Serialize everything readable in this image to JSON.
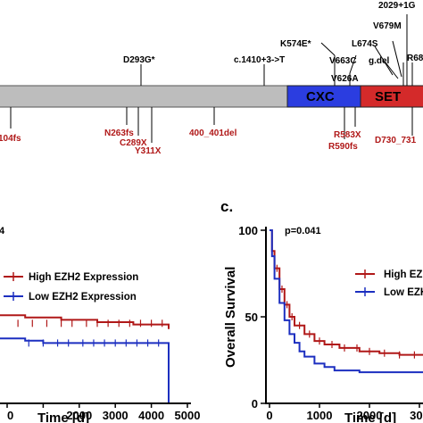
{
  "domains": [
    {
      "label": "CXC",
      "color": "#2b3de0"
    },
    {
      "label": "SET",
      "color": "#d42a2a"
    }
  ],
  "mutations_above": [
    "2029+1G",
    "V679M",
    "R68",
    "L674S",
    "K574E*",
    "V663C",
    "g.del",
    "D293G*",
    "c.1410+3->T",
    "V626A"
  ],
  "mutations_below": [
    "104fs",
    "N263fs",
    "C289X",
    "Y311X",
    "400_401del",
    "R583X",
    "R590fs",
    "D730_731"
  ],
  "panel_b": {
    "pvalue": "4",
    "legend": [
      "High  EZH2  Expression",
      "Low  EZH2  Expression"
    ],
    "xlabel": "Time [d]",
    "xticks": [
      "0",
      "2000",
      "3000",
      "4000",
      "5000"
    ]
  },
  "panel_c": {
    "letter": "c.",
    "pvalue": "p=0.041",
    "ylabel": "Overall Survival",
    "yticks": [
      "100",
      "50",
      "0"
    ],
    "legend": [
      "High  EZH",
      "Low  EZH"
    ],
    "xlabel": "Time [d]",
    "xticks": [
      "0",
      "1000",
      "2000",
      "300"
    ]
  },
  "colors": {
    "high": "#b01818",
    "low": "#1c2fc0"
  },
  "chart_data": [
    {
      "type": "line",
      "title": "",
      "xlabel": "Time [d]",
      "ylabel": "",
      "xlim": [
        -300,
        5000
      ],
      "series": [
        {
          "name": "High  EZH2  Expression",
          "x": [
            -300,
            500,
            1500,
            2500,
            3500,
            4480,
            4480
          ],
          "y": [
            38,
            37,
            36,
            35,
            34,
            34,
            32
          ]
        },
        {
          "name": "Low  EZH2  Expression",
          "x": [
            -300,
            500,
            1000,
            2000,
            3000,
            4480,
            4480
          ],
          "y": [
            28,
            27,
            26,
            26,
            26,
            26,
            0
          ]
        }
      ]
    },
    {
      "type": "line",
      "title": "",
      "xlabel": "Time [d]",
      "ylabel": "Overall Survival",
      "xlim": [
        0,
        3200
      ],
      "ylim": [
        0,
        100
      ],
      "series": [
        {
          "name": "High  EZH",
          "x": [
            0,
            50,
            100,
            200,
            300,
            400,
            500,
            700,
            900,
            1100,
            1400,
            1800,
            2200,
            2600,
            3000,
            3200
          ],
          "y": [
            100,
            88,
            78,
            66,
            57,
            50,
            45,
            40,
            36,
            34,
            32,
            30,
            29,
            28,
            28,
            28
          ]
        },
        {
          "name": "Low  EZH",
          "x": [
            0,
            50,
            100,
            200,
            300,
            400,
            500,
            600,
            700,
            900,
            1100,
            1300,
            1800,
            2200,
            2600,
            3000,
            3200
          ],
          "y": [
            100,
            85,
            72,
            58,
            48,
            40,
            35,
            30,
            27,
            23,
            21,
            19,
            18,
            18,
            18,
            18,
            18
          ]
        }
      ]
    }
  ]
}
